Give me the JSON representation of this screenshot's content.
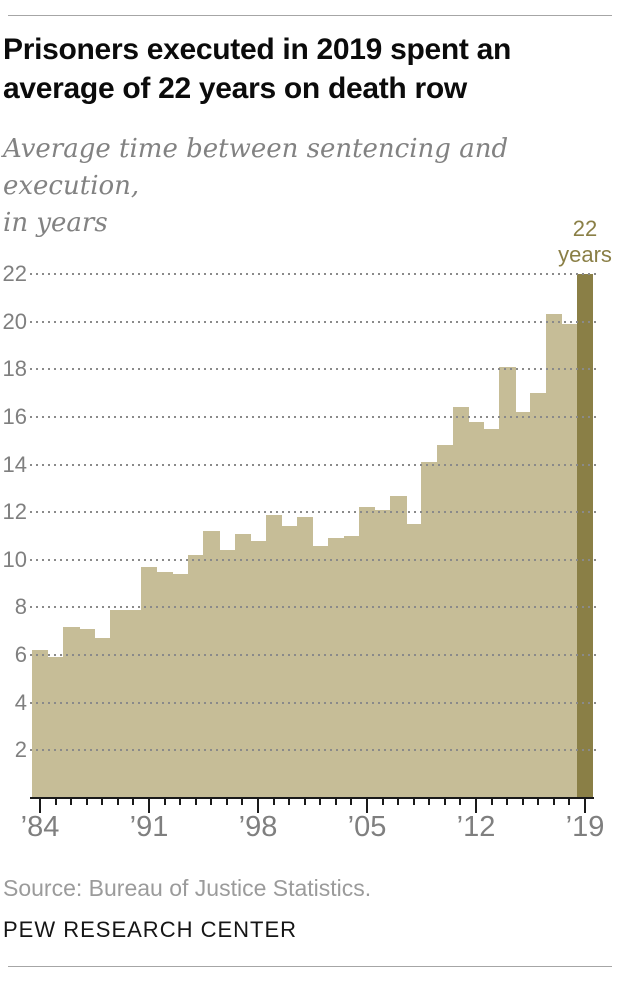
{
  "header": {
    "title_line1": "Prisoners executed in 2019 spent an",
    "title_line2": "average of 22 years on death row",
    "subtitle_line1": "Average time between sentencing and execution,",
    "subtitle_line2": "in years"
  },
  "chart_data": {
    "type": "bar",
    "title": "Prisoners executed in 2019 spent an average of 22 years on death row",
    "subtitle": "Average time between sentencing and execution, in years",
    "x": [
      1984,
      1985,
      1986,
      1987,
      1988,
      1989,
      1990,
      1991,
      1992,
      1993,
      1994,
      1995,
      1996,
      1997,
      1998,
      1999,
      2000,
      2001,
      2002,
      2003,
      2004,
      2005,
      2006,
      2007,
      2008,
      2009,
      2010,
      2011,
      2012,
      2013,
      2014,
      2015,
      2016,
      2017,
      2018,
      2019
    ],
    "values": [
      6.2,
      5.9,
      7.2,
      7.1,
      6.7,
      7.9,
      7.9,
      9.7,
      9.5,
      9.4,
      10.2,
      11.2,
      10.4,
      11.1,
      10.8,
      11.9,
      11.4,
      11.8,
      10.6,
      10.9,
      11.0,
      12.2,
      12.1,
      12.7,
      11.5,
      14.1,
      14.8,
      16.4,
      15.8,
      15.5,
      18.1,
      16.2,
      17.0,
      20.3,
      19.9,
      22.0
    ],
    "ylim": [
      0,
      22
    ],
    "ytick_step": 2,
    "yticks": [
      2,
      4,
      6,
      8,
      10,
      12,
      14,
      16,
      18,
      20,
      22
    ],
    "grid": "dotted-horizontal",
    "legend": "none",
    "highlight_year": 2019,
    "xtick_labels": [
      {
        "year": 1984,
        "label": "’84"
      },
      {
        "year": 1991,
        "label": "’91"
      },
      {
        "year": 1998,
        "label": "’98"
      },
      {
        "year": 2005,
        "label": "’05"
      },
      {
        "year": 2012,
        "label": "’12"
      },
      {
        "year": 2019,
        "label": "’19"
      }
    ],
    "annotation": {
      "line1": "22",
      "line2": "years"
    },
    "colors": {
      "bar": "#c6bd97",
      "highlight_bar": "#8a7f46",
      "annotation_text": "#8a7f46",
      "grid_dot": "#8a8a8a",
      "axis": "#1a1a1a",
      "axis_label": "#7f7f7f"
    }
  },
  "footer": {
    "source": "Source: Bureau of Justice Statistics.",
    "brand": "PEW RESEARCH CENTER"
  }
}
